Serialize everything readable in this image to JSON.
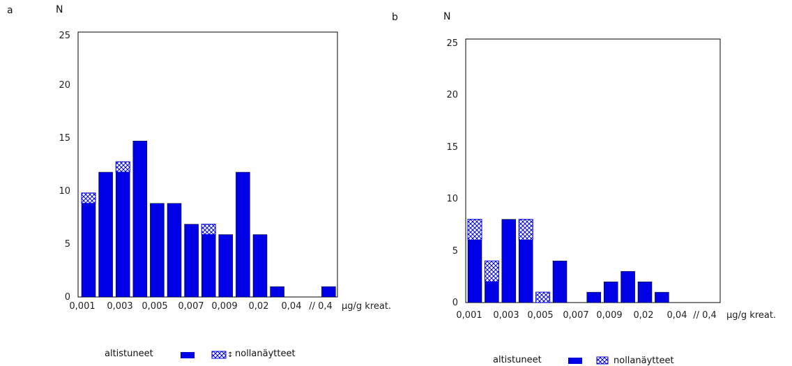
{
  "colors": {
    "exposed": "#0000e6",
    "zero_fill": "#ffffff",
    "zero_hatch": "#0000e6",
    "frame": "#000000"
  },
  "chart_data": [
    {
      "panel_label": "a",
      "type": "bar",
      "stacked": true,
      "ylabel": "N",
      "xlabel": "µg/g kreat.",
      "ylim": [
        0,
        25
      ],
      "y_ticks": [
        "0",
        "5",
        "10",
        "15",
        "20",
        "25"
      ],
      "x_tick_labels": [
        "0,001",
        "0,003",
        "0,005",
        "0,007",
        "0,009",
        "0,02",
        "0,04",
        "// 0,4"
      ],
      "series": [
        {
          "name": "altistuneet",
          "values": [
            9,
            12,
            12,
            15,
            9,
            9,
            7,
            6,
            6,
            12,
            6,
            1,
            0,
            0,
            1
          ]
        },
        {
          "name": "nollanäytteet",
          "values": [
            1,
            0,
            1,
            0,
            0,
            0,
            0,
            1,
            0,
            0,
            0,
            0,
            0,
            0,
            0
          ]
        }
      ],
      "legend": {
        "exposed_label": "altistuneet",
        "zero_label": "nollanäytteet",
        "zero_suffix": "↕"
      }
    },
    {
      "panel_label": "b",
      "type": "bar",
      "stacked": true,
      "ylabel": "N",
      "xlabel": "µg/g kreat.",
      "ylim": [
        0,
        25
      ],
      "y_ticks": [
        "0",
        "5",
        "10",
        "15",
        "20",
        "25"
      ],
      "x_tick_labels": [
        "0,001",
        "0,003",
        "0,005",
        "0,007",
        "0,009",
        "0,02",
        "0,04",
        "// 0,4"
      ],
      "series": [
        {
          "name": "altistuneet",
          "values": [
            6,
            2,
            8,
            6,
            0,
            4,
            0,
            1,
            2,
            3,
            2,
            1,
            0,
            0,
            0
          ]
        },
        {
          "name": "nollanäytteet",
          "values": [
            2,
            2,
            0,
            2,
            1,
            0,
            0,
            0,
            0,
            0,
            0,
            0,
            0,
            0,
            0
          ]
        }
      ],
      "legend": {
        "exposed_label": "altistuneet",
        "zero_label": "nollanäytteet",
        "zero_suffix": ""
      }
    }
  ]
}
